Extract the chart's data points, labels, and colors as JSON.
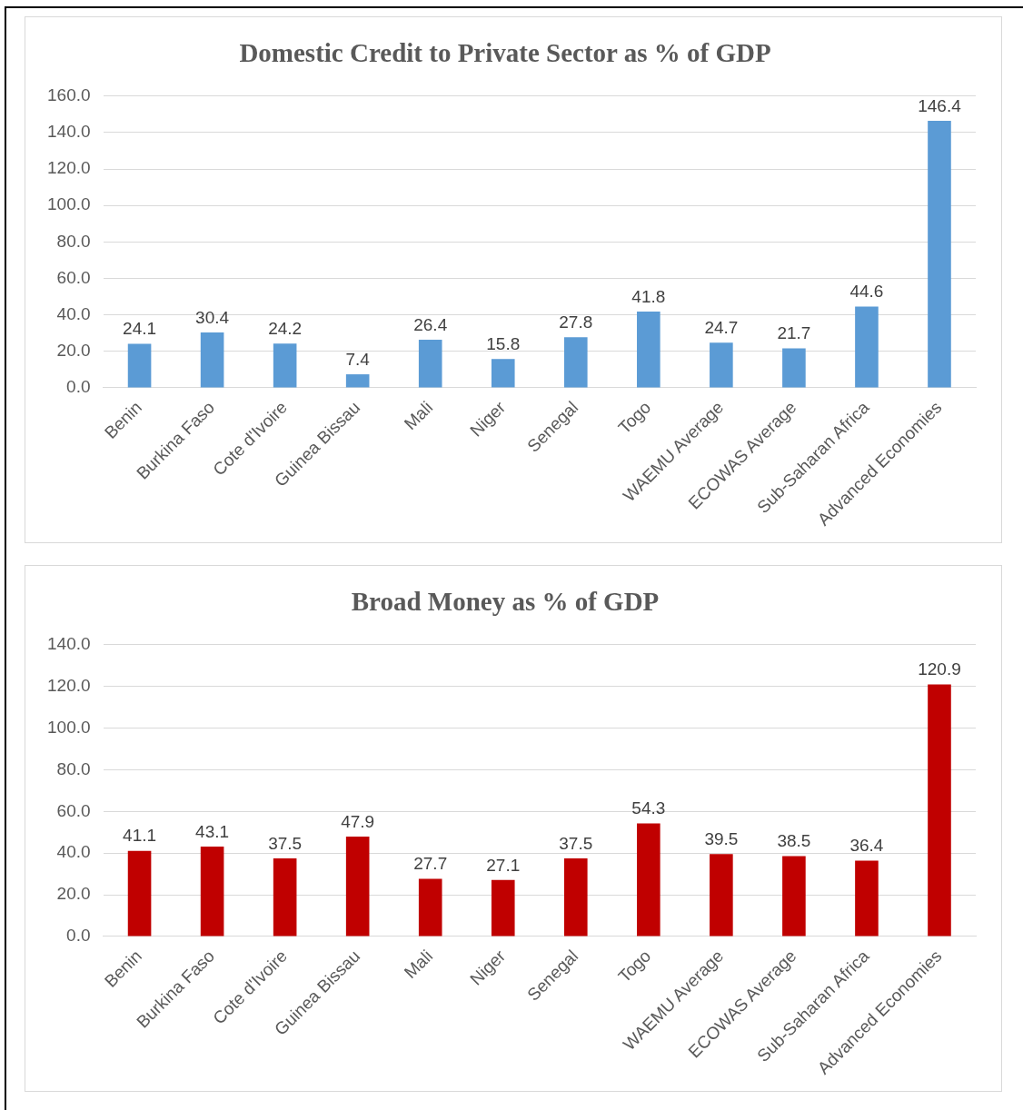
{
  "chart_data": [
    {
      "type": "bar",
      "title": "Domestic Credit to Private Sector as % of GDP",
      "categories": [
        "Benin",
        "Burkina Faso",
        "Cote d'Ivoire",
        "Guinea Bissau",
        "Mali",
        "Niger",
        "Senegal",
        "Togo",
        "WAEMU Average",
        "ECOWAS Average",
        "Sub-Saharan Africa",
        "Advanced Economies"
      ],
      "values": [
        24.1,
        30.4,
        24.2,
        7.4,
        26.4,
        15.8,
        27.8,
        41.8,
        24.7,
        21.7,
        44.6,
        146.4
      ],
      "color": "#5b9bd5",
      "ylim": [
        0,
        160
      ],
      "yticks": [
        {
          "value": 0,
          "label": "0.0"
        },
        {
          "value": 20,
          "label": "20.0"
        },
        {
          "value": 40,
          "label": "40.0"
        },
        {
          "value": 60,
          "label": "60.0"
        },
        {
          "value": 80,
          "label": "80.0"
        },
        {
          "value": 100,
          "label": "100.0"
        },
        {
          "value": 120,
          "label": "120.0"
        },
        {
          "value": 140,
          "label": "140.0"
        },
        {
          "value": 160,
          "label": "160.0"
        }
      ],
      "grid": "y",
      "data_labels": true
    },
    {
      "type": "bar",
      "title": "Broad Money as % of GDP",
      "categories": [
        "Benin",
        "Burkina Faso",
        "Cote d'Ivoire",
        "Guinea Bissau",
        "Mali",
        "Niger",
        "Senegal",
        "Togo",
        "WAEMU Average",
        "ECOWAS Average",
        "Sub-Saharan Africa",
        "Advanced Economies"
      ],
      "values": [
        41.1,
        43.1,
        37.5,
        47.9,
        27.7,
        27.1,
        37.5,
        54.3,
        39.5,
        38.5,
        36.4,
        120.9
      ],
      "color": "#c00000",
      "ylim": [
        0,
        140
      ],
      "yticks": [
        {
          "value": 0,
          "label": "0.0"
        },
        {
          "value": 20,
          "label": "20.0"
        },
        {
          "value": 40,
          "label": "40.0"
        },
        {
          "value": 60,
          "label": "60.0"
        },
        {
          "value": 80,
          "label": "80.0"
        },
        {
          "value": 100,
          "label": "100.0"
        },
        {
          "value": 120,
          "label": "120.0"
        },
        {
          "value": 140,
          "label": "140.0"
        }
      ],
      "grid": "y",
      "data_labels": true
    }
  ]
}
